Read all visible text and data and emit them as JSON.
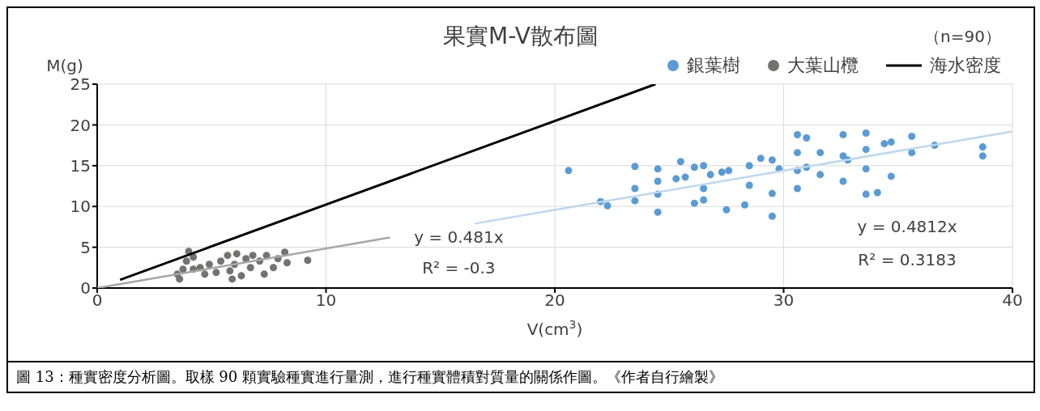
{
  "chart_data": {
    "type": "scatter",
    "title": "果實M-V散布圖",
    "xlabel": "V(cm$^{3}$)",
    "ylabel": "M(g)",
    "xlim": [
      0,
      40
    ],
    "xticks": [
      0,
      10,
      20,
      30,
      40
    ],
    "ylim": [
      0,
      25
    ],
    "yticks": [
      0,
      5,
      10,
      15,
      20,
      25
    ],
    "grid": true,
    "legend": "top right",
    "series": [
      {
        "name": "銀葉樹",
        "marker": "circle",
        "color": "#5b9bd5",
        "x": [
          20.6,
          22.0,
          22.3,
          23.5,
          23.5,
          23.5,
          24.5,
          24.5,
          24.5,
          24.5,
          25.3,
          25.5,
          25.7,
          26.1,
          26.1,
          26.5,
          26.5,
          26.5,
          26.8,
          27.3,
          27.6,
          27.5,
          28.3,
          28.5,
          28.5,
          29.0,
          29.5,
          29.8,
          29.5,
          29.5,
          30.6,
          30.6,
          30.6,
          30.6,
          31.0,
          31.0,
          31.6,
          31.6,
          32.6,
          32.6,
          32.6,
          32.8,
          33.6,
          33.6,
          33.6,
          33.6,
          34.1,
          34.4,
          34.7,
          34.7,
          35.6,
          35.6,
          36.6,
          38.7,
          38.7
        ],
        "values": [
          14.4,
          10.6,
          10.1,
          14.9,
          12.2,
          10.7,
          14.6,
          13.1,
          11.5,
          9.3,
          13.4,
          15.5,
          13.6,
          14.8,
          10.4,
          15.0,
          12.2,
          10.8,
          13.9,
          14.2,
          14.4,
          9.6,
          10.2,
          15.0,
          12.6,
          15.9,
          15.7,
          14.6,
          11.6,
          8.8,
          18.8,
          16.6,
          14.4,
          12.2,
          18.4,
          14.8,
          16.6,
          13.9,
          18.8,
          16.2,
          13.1,
          15.7,
          19.0,
          17.0,
          14.6,
          11.5,
          11.7,
          17.7,
          17.9,
          13.7,
          18.6,
          16.6,
          17.5,
          17.3,
          16.2
        ]
      },
      {
        "name": "大葉山欖",
        "marker": "circle",
        "color": "#767171",
        "x": [
          3.6,
          3.75,
          3.9,
          4.0,
          4.2,
          4.5,
          4.7,
          4.9,
          5.2,
          5.4,
          5.7,
          5.8,
          6.0,
          6.1,
          6.3,
          6.5,
          6.7,
          6.8,
          7.1,
          7.3,
          7.4,
          7.7,
          7.9,
          8.2,
          8.3,
          9.2,
          3.5,
          4.2,
          5.9
        ],
        "values": [
          1.1,
          2.3,
          3.3,
          4.5,
          3.8,
          2.5,
          1.7,
          2.9,
          1.9,
          3.3,
          4.0,
          2.1,
          2.9,
          4.2,
          1.5,
          3.6,
          2.5,
          4.0,
          3.3,
          1.7,
          4.0,
          2.5,
          3.6,
          4.4,
          3.1,
          3.4,
          1.7,
          2.3,
          1.1
        ]
      },
      {
        "name": "海水密度",
        "type": "line",
        "marker": "none",
        "color": "#000000",
        "x": [
          1,
          24.4
        ],
        "values": [
          1.0,
          25
        ]
      },
      {
        "type": "line",
        "marker": "none",
        "color": "#a6a6a6",
        "x": [
          0,
          12.8
        ],
        "values": [
          0,
          6.2
        ]
      },
      {
        "type": "line",
        "marker": "none",
        "color": "#bdd7ee",
        "x": [
          16.5,
          40
        ],
        "values": [
          7.9,
          19.2
        ]
      }
    ],
    "annotations": [
      "y = 0.481x",
      "R² = -0.3",
      "y = 0.4812x",
      "R² = 0.3183",
      "（n=90）",
      "圖 13：種實密度分析圖。取樣 90 顆實驗種實進行量測，進行種實體積對質量的關係作圖。《作者自行繪製》"
    ]
  }
}
